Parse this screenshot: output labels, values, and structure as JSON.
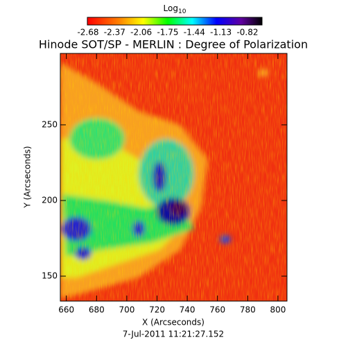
{
  "chart_data": {
    "type": "image",
    "title": "Hinode SOT/SP - MERLIN : Degree of Polarization",
    "colorbar_label": {
      "text": "Log",
      "subscript": "10"
    },
    "clim": [
      -2.68,
      -0.82
    ],
    "cticks": [
      -2.68,
      -2.37,
      -2.06,
      -1.75,
      -1.44,
      -1.13,
      -0.82
    ],
    "xlabel": "X (Arcseconds)",
    "ylabel": "Y (Arcseconds)",
    "xlim": [
      656,
      806
    ],
    "ylim": [
      133.5,
      297.2
    ],
    "xticks": [
      660,
      680,
      700,
      720,
      740,
      760,
      780,
      800
    ],
    "yticks": [
      150,
      200,
      250
    ],
    "date": "7-Jul-2011 11:21:27.152"
  }
}
